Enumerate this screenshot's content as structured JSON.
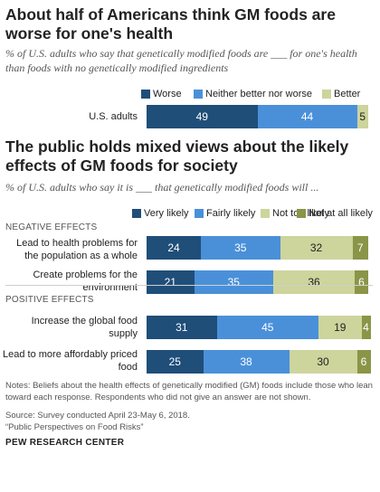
{
  "colors": {
    "dark_blue": "#1f4e79",
    "mid_blue": "#4a90d9",
    "light_olive": "#cdd49c",
    "dark_olive": "#8a9547"
  },
  "chart_data": [
    {
      "type": "bar",
      "stacked": true,
      "orientation": "horizontal",
      "title": "About half of Americans think GM foods are worse for one's health",
      "subtitle": "% of U.S. adults who say that genetically modified foods are ___ for one's health than foods with no genetically modified ingredients",
      "categories": [
        "U.S. adults"
      ],
      "series": [
        {
          "name": "Worse",
          "values": [
            49
          ],
          "color": "#1f4e79"
        },
        {
          "name": "Neither better nor worse",
          "values": [
            44
          ],
          "color": "#4a90d9"
        },
        {
          "name": "Better",
          "values": [
            5
          ],
          "color": "#cdd49c"
        }
      ],
      "legend_position": "top-right"
    },
    {
      "type": "bar",
      "stacked": true,
      "orientation": "horizontal",
      "title": "The public holds mixed views about the likely effects of GM foods for society",
      "subtitle": "% of U.S. adults who say it is ___ that genetically modified foods will ...",
      "groups": [
        {
          "label": "NEGATIVE EFFECTS",
          "categories": [
            "Lead to health problems for the population as a whole",
            "Create problems for the environment"
          ]
        },
        {
          "label": "POSITIVE EFFECTS",
          "categories": [
            "Increase the global food supply",
            "Lead to more affordably priced food"
          ]
        }
      ],
      "categories": [
        "Lead to health problems for the population as a whole",
        "Create problems for the environment",
        "Increase the global food supply",
        "Lead to more affordably priced food"
      ],
      "series": [
        {
          "name": "Very likely",
          "values": [
            24,
            21,
            31,
            25
          ],
          "color": "#1f4e79"
        },
        {
          "name": "Fairly likely",
          "values": [
            35,
            35,
            45,
            38
          ],
          "color": "#4a90d9"
        },
        {
          "name": "Not too likely",
          "values": [
            32,
            36,
            19,
            30
          ],
          "color": "#cdd49c"
        },
        {
          "name": "Not at all likely",
          "values": [
            7,
            6,
            4,
            6
          ],
          "color": "#8a9547"
        }
      ],
      "legend_position": "top-right"
    }
  ],
  "chart1": {
    "title": "About half of Americans think GM foods are worse for one's health",
    "subtitle": "% of U.S. adults who say that genetically modified foods are ___ for one's health than foods with no genetically modified ingredients",
    "legend": [
      "Worse",
      "Neither better nor worse",
      "Better"
    ],
    "row_label": "U.S. adults"
  },
  "chart2": {
    "title": "The public holds mixed views about the likely effects of GM foods for society",
    "subtitle": "% of U.S. adults who say it is ___ that genetically modified foods will ...",
    "legend": [
      "Very likely",
      "Fairly likely",
      "Not too likely",
      "Not at all likely"
    ],
    "section_negative": "NEGATIVE EFFECTS",
    "section_positive": "POSITIVE EFFECTS",
    "row_labels": [
      "Lead to health problems for the population as a whole",
      "Create problems for the environment",
      "Increase the global food supply",
      "Lead to more affordably priced food"
    ]
  },
  "footer": {
    "notes": "Notes: Beliefs about the health effects of genetically modified (GM) foods include those who lean toward each response. Respondents who did not give an answer are not shown.",
    "source": "Source: Survey conducted April 23-May 6, 2018.",
    "report": "“Public Perspectives on Food Risks”",
    "credit": "PEW RESEARCH CENTER"
  }
}
